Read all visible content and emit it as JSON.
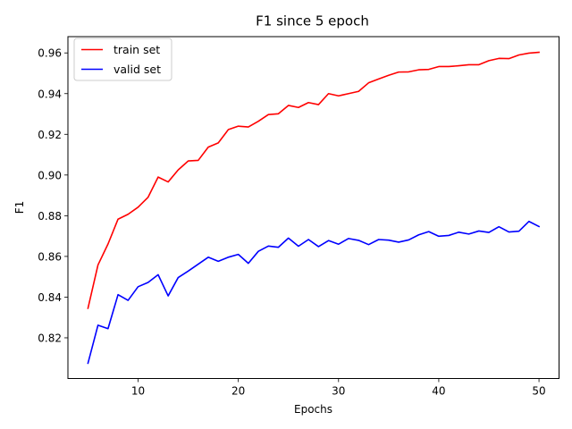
{
  "chart_data": {
    "type": "line",
    "title": "F1 since 5 epoch",
    "xlabel": "Epochs",
    "ylabel": "F1",
    "xlim": [
      3,
      52
    ],
    "ylim": [
      0.8,
      0.968
    ],
    "xticks": [
      10,
      20,
      30,
      40,
      50
    ],
    "xtick_labels": [
      "10",
      "20",
      "30",
      "40",
      "50"
    ],
    "yticks": [
      0.82,
      0.84,
      0.86,
      0.88,
      0.9,
      0.92,
      0.94,
      0.96
    ],
    "ytick_labels": [
      "0.82",
      "0.84",
      "0.86",
      "0.88",
      "0.90",
      "0.92",
      "0.94",
      "0.96"
    ],
    "grid": false,
    "legend_position": "top-left",
    "x": [
      5,
      6,
      7,
      8,
      9,
      10,
      11,
      12,
      13,
      14,
      15,
      16,
      17,
      18,
      19,
      20,
      21,
      22,
      23,
      24,
      25,
      26,
      27,
      28,
      29,
      30,
      31,
      32,
      33,
      34,
      35,
      36,
      37,
      38,
      39,
      40,
      41,
      42,
      43,
      44,
      45,
      46,
      47,
      48,
      49,
      50
    ],
    "series": [
      {
        "name": "train set",
        "color": "#ff0000",
        "values": [
          0.8345,
          0.8558,
          0.8661,
          0.8783,
          0.8807,
          0.8842,
          0.8891,
          0.899,
          0.8966,
          0.9025,
          0.9069,
          0.9072,
          0.9137,
          0.9158,
          0.9223,
          0.924,
          0.9236,
          0.9264,
          0.9297,
          0.9301,
          0.9342,
          0.9332,
          0.9356,
          0.9346,
          0.94,
          0.9389,
          0.94,
          0.9411,
          0.9453,
          0.9472,
          0.949,
          0.9506,
          0.9507,
          0.9517,
          0.9519,
          0.9533,
          0.9533,
          0.9537,
          0.9542,
          0.9542,
          0.9562,
          0.9573,
          0.9572,
          0.959,
          0.9599,
          0.9603
        ]
      },
      {
        "name": "valid set",
        "color": "#0000ff",
        "values": [
          0.8075,
          0.8262,
          0.8245,
          0.8412,
          0.8384,
          0.8451,
          0.8472,
          0.851,
          0.8406,
          0.8496,
          0.8528,
          0.8562,
          0.8596,
          0.8576,
          0.8596,
          0.861,
          0.8566,
          0.8625,
          0.8651,
          0.8645,
          0.869,
          0.865,
          0.8683,
          0.8648,
          0.8678,
          0.866,
          0.8688,
          0.8679,
          0.8658,
          0.8683,
          0.868,
          0.867,
          0.8681,
          0.8706,
          0.8722,
          0.8699,
          0.8703,
          0.8719,
          0.871,
          0.8725,
          0.8718,
          0.8746,
          0.872,
          0.8724,
          0.8772,
          0.8747
        ]
      }
    ]
  }
}
